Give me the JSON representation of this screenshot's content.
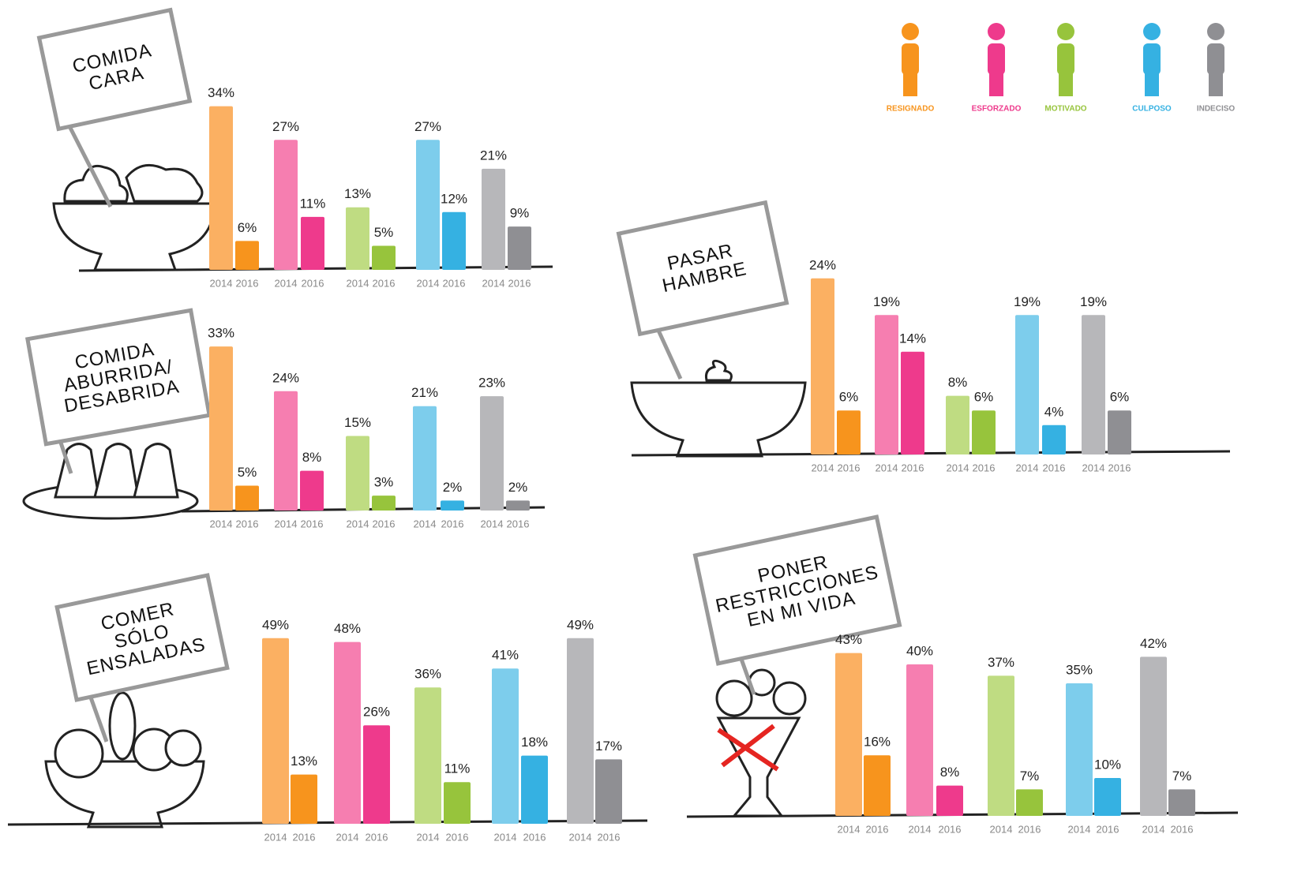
{
  "legend": [
    {
      "name": "RESIGNADO",
      "color": "#f7941d"
    },
    {
      "name": "ESFORZADO",
      "color": "#ee3a8c"
    },
    {
      "name": "MOTIVADO",
      "color": "#97c43c"
    },
    {
      "name": "CULPOSO",
      "color": "#35b1e2"
    },
    {
      "name": "INDECISO",
      "color": "#8f8f93"
    }
  ],
  "chart_data": [
    {
      "type": "bar",
      "title": [
        "COMIDA",
        "CARA"
      ],
      "categories": [
        "2014",
        "2016",
        "2014",
        "2016",
        "2014",
        "2016",
        "2014",
        "2016",
        "2014",
        "2016"
      ],
      "values": [
        34,
        6,
        27,
        11,
        13,
        5,
        27,
        12,
        21,
        9
      ],
      "value_labels": [
        "34%",
        "6%",
        "27%",
        "11%",
        "13%",
        "5%",
        "27%",
        "12%",
        "21%",
        "9%"
      ],
      "colors": [
        "#fbb062",
        "#f7941d",
        "#f67eb0",
        "#ee3a8c",
        "#bfdc82",
        "#97c43c",
        "#7dcdec",
        "#35b1e2",
        "#b7b7ba",
        "#8f8f93"
      ]
    },
    {
      "type": "bar",
      "title": [
        "COMIDA",
        "ABURRIDA/",
        "DESABRIDA"
      ],
      "categories": [
        "2014",
        "2016",
        "2014",
        "2016",
        "2014",
        "2016",
        "2014",
        "2016",
        "2014",
        "2016"
      ],
      "values": [
        33,
        5,
        24,
        8,
        15,
        3,
        21,
        2,
        23,
        2
      ],
      "value_labels": [
        "33%",
        "5%",
        "24%",
        "8%",
        "15%",
        "3%",
        "21%",
        "2%",
        "23%",
        "2%"
      ],
      "colors": [
        "#fbb062",
        "#f7941d",
        "#f67eb0",
        "#ee3a8c",
        "#bfdc82",
        "#97c43c",
        "#7dcdec",
        "#35b1e2",
        "#b7b7ba",
        "#8f8f93"
      ]
    },
    {
      "type": "bar",
      "title": [
        "PASAR",
        "HAMBRE"
      ],
      "categories": [
        "2014",
        "2016",
        "2014",
        "2016",
        "2014",
        "2016",
        "2014",
        "2016",
        "2014",
        "2016"
      ],
      "values": [
        24,
        6,
        19,
        14,
        8,
        6,
        19,
        4,
        19,
        6
      ],
      "value_labels": [
        "24%",
        "6%",
        "19%",
        "14%",
        "8%",
        "6%",
        "19%",
        "4%",
        "19%",
        "6%"
      ],
      "colors": [
        "#fbb062",
        "#f7941d",
        "#f67eb0",
        "#ee3a8c",
        "#bfdc82",
        "#97c43c",
        "#7dcdec",
        "#35b1e2",
        "#b7b7ba",
        "#8f8f93"
      ]
    },
    {
      "type": "bar",
      "title": [
        "COMER",
        "SÓLO",
        "ENSALADAS"
      ],
      "categories": [
        "2014",
        "2016",
        "2014",
        "2016",
        "2014",
        "2016",
        "2014",
        "2016",
        "2014",
        "2016"
      ],
      "values": [
        49,
        13,
        48,
        26,
        36,
        11,
        41,
        18,
        49,
        17
      ],
      "value_labels": [
        "49%",
        "13%",
        "48%",
        "26%",
        "36%",
        "11%",
        "41%",
        "18%",
        "49%",
        "17%"
      ],
      "colors": [
        "#fbb062",
        "#f7941d",
        "#f67eb0",
        "#ee3a8c",
        "#bfdc82",
        "#97c43c",
        "#7dcdec",
        "#35b1e2",
        "#b7b7ba",
        "#8f8f93"
      ]
    },
    {
      "type": "bar",
      "title": [
        "PONER",
        "RESTRICCIONES",
        "EN MI VIDA"
      ],
      "categories": [
        "2014",
        "2016",
        "2014",
        "2016",
        "2014",
        "2016",
        "2014",
        "2016",
        "2014",
        "2016"
      ],
      "values": [
        43,
        16,
        40,
        8,
        37,
        7,
        35,
        10,
        42,
        7
      ],
      "value_labels": [
        "43%",
        "16%",
        "40%",
        "8%",
        "37%",
        "7%",
        "35%",
        "10%",
        "42%",
        "7%"
      ],
      "colors": [
        "#fbb062",
        "#f7941d",
        "#f67eb0",
        "#ee3a8c",
        "#bfdc82",
        "#97c43c",
        "#7dcdec",
        "#35b1e2",
        "#b7b7ba",
        "#8f8f93"
      ]
    }
  ]
}
